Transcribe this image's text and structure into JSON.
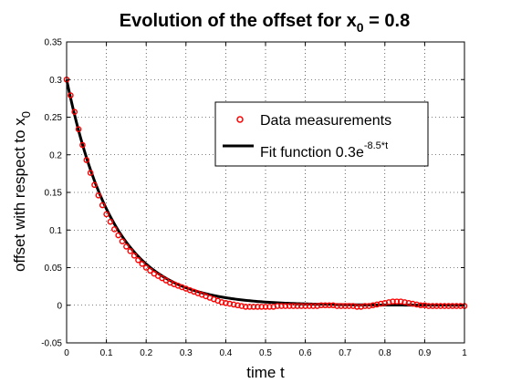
{
  "chart_data": {
    "type": "scatter",
    "title": "Evolution of the offset for x",
    "title_sub": "0",
    "title_suffix": " = 0.8",
    "xlabel": "time t",
    "ylabel": "offset with respect to x",
    "ylabel_sub": "0",
    "xlim": [
      0,
      1
    ],
    "ylim": [
      -0.05,
      0.35
    ],
    "xticks": [
      0,
      0.1,
      0.2,
      0.3,
      0.4,
      0.5,
      0.6,
      0.7,
      0.8,
      0.9,
      1
    ],
    "xtick_labels": [
      "0",
      "0.1",
      "0.2",
      "0.3",
      "0.4",
      "0.5",
      "0.6",
      "0.7",
      "0.8",
      "0.9",
      "1"
    ],
    "yticks": [
      -0.05,
      0,
      0.05,
      0.1,
      0.15,
      0.2,
      0.25,
      0.3,
      0.35
    ],
    "ytick_labels": [
      "-0.05",
      "0",
      "0.05",
      "0.1",
      "0.15",
      "0.2",
      "0.25",
      "0.3",
      "0.35"
    ],
    "grid": true,
    "legend_position": "top-right",
    "series": [
      {
        "name": "Data measurements",
        "kind": "markers",
        "marker": "circle",
        "color": "#ff0000",
        "x": [
          0,
          0.01,
          0.02,
          0.03,
          0.04,
          0.05,
          0.06,
          0.07,
          0.08,
          0.09,
          0.1,
          0.11,
          0.12,
          0.13,
          0.14,
          0.15,
          0.16,
          0.17,
          0.18,
          0.19,
          0.2,
          0.21,
          0.22,
          0.23,
          0.24,
          0.25,
          0.26,
          0.27,
          0.28,
          0.29,
          0.3,
          0.31,
          0.32,
          0.33,
          0.34,
          0.35,
          0.36,
          0.37,
          0.38,
          0.39,
          0.4,
          0.41,
          0.42,
          0.43,
          0.44,
          0.45,
          0.46,
          0.47,
          0.48,
          0.49,
          0.5,
          0.51,
          0.52,
          0.53,
          0.54,
          0.55,
          0.56,
          0.57,
          0.58,
          0.59,
          0.6,
          0.61,
          0.62,
          0.63,
          0.64,
          0.65,
          0.66,
          0.67,
          0.68,
          0.69,
          0.7,
          0.71,
          0.72,
          0.73,
          0.74,
          0.75,
          0.76,
          0.77,
          0.78,
          0.79,
          0.8,
          0.81,
          0.82,
          0.83,
          0.84,
          0.85,
          0.86,
          0.87,
          0.88,
          0.89,
          0.9,
          0.91,
          0.92,
          0.93,
          0.94,
          0.95,
          0.96,
          0.97,
          0.98,
          0.99,
          1
        ],
        "values": [
          0.3,
          0.279,
          0.257,
          0.234,
          0.213,
          0.193,
          0.176,
          0.16,
          0.146,
          0.133,
          0.121,
          0.111,
          0.101,
          0.093,
          0.085,
          0.078,
          0.072,
          0.066,
          0.06,
          0.055,
          0.05,
          0.046,
          0.042,
          0.039,
          0.036,
          0.033,
          0.03,
          0.028,
          0.026,
          0.024,
          0.022,
          0.02,
          0.018,
          0.016,
          0.014,
          0.012,
          0.01,
          0.008,
          0.006,
          0.004,
          0.003,
          0.002,
          0.001,
          0.0,
          -0.001,
          -0.002,
          -0.002,
          -0.002,
          -0.002,
          -0.002,
          -0.002,
          -0.002,
          -0.002,
          -0.001,
          -0.001,
          -0.001,
          -0.001,
          -0.001,
          -0.001,
          -0.001,
          -0.001,
          -0.001,
          -0.001,
          -0.001,
          0.0,
          0.0,
          0.0,
          0.0,
          -0.001,
          -0.001,
          -0.001,
          -0.001,
          -0.001,
          -0.002,
          -0.002,
          -0.001,
          -0.001,
          0.0,
          0.001,
          0.002,
          0.003,
          0.004,
          0.005,
          0.005,
          0.005,
          0.004,
          0.003,
          0.002,
          0.001,
          0.0,
          0.0,
          -0.001,
          -0.001,
          -0.001,
          -0.001,
          -0.001,
          -0.001,
          -0.001,
          -0.001,
          -0.001,
          -0.001
        ]
      },
      {
        "name": "Fit function 0.3e",
        "name_sup": "-8.5*t",
        "kind": "line",
        "color": "#000000",
        "amplitude": 0.3,
        "rate": 8.5
      }
    ]
  }
}
